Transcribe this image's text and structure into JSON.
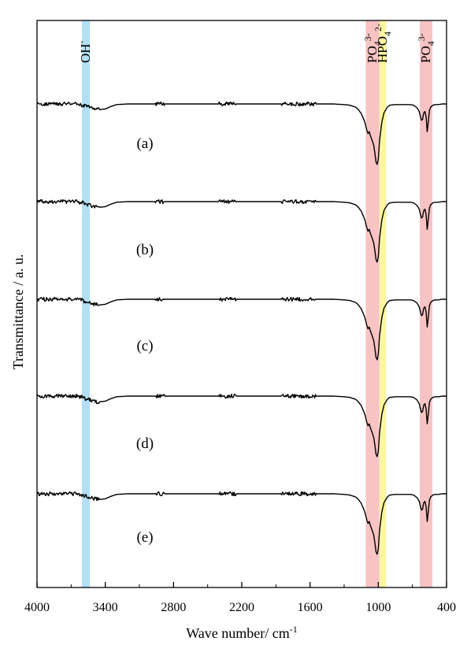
{
  "chart_data": {
    "type": "line",
    "xlabel": "Wave number/ cm",
    "xlabel_sup": "-1",
    "ylabel": "Transmittance / a. u.",
    "xlim": [
      4000,
      400
    ],
    "x_reversed": true,
    "xticks": [
      4000,
      3400,
      2800,
      2200,
      1600,
      1000,
      400
    ],
    "xtick_labels": [
      "4000",
      "3400",
      "2800",
      "2200",
      "1600",
      "1000",
      "400"
    ],
    "grid": false,
    "highlight_bands": [
      {
        "center": 3570,
        "width": 70,
        "color": "#b3dff5",
        "label": "OH",
        "label_sup": "-",
        "label_sub": ""
      },
      {
        "center": 1050,
        "width": 120,
        "color": "#f7c3c3",
        "label": "PO",
        "label_sub": "4",
        "label_sup": "3-"
      },
      {
        "center": 960,
        "width": 60,
        "color": "#fbf6a0",
        "label": "HPO",
        "label_sub": "4",
        "label_sup": "2-"
      },
      {
        "center": 580,
        "width": 110,
        "color": "#f7c3c3",
        "label": "PO",
        "label_sub": "4",
        "label_sup": "3-"
      }
    ],
    "series": [
      {
        "label": "(a)"
      },
      {
        "label": "(b)"
      },
      {
        "label": "(c)"
      },
      {
        "label": "(d)"
      },
      {
        "label": "(e)"
      }
    ],
    "spectrum_profile": {
      "x": [
        4000,
        3700,
        3650,
        3600,
        3550,
        3500,
        3450,
        3400,
        3350,
        3300,
        3200,
        3000,
        2900,
        2800,
        2500,
        2350,
        2200,
        2000,
        1800,
        1700,
        1600,
        1500,
        1400,
        1300,
        1250,
        1200,
        1180,
        1150,
        1120,
        1100,
        1090,
        1080,
        1070,
        1060,
        1050,
        1040,
        1030,
        1020,
        1010,
        1000,
        990,
        970,
        950,
        920,
        900,
        850,
        800,
        760,
        720,
        690,
        660,
        640,
        630,
        620,
        610,
        605,
        600,
        590,
        580,
        575,
        570,
        565,
        560,
        555,
        550,
        540,
        520,
        500,
        470,
        440,
        400
      ],
      "y": [
        0,
        0,
        0,
        0.02,
        0.05,
        0.08,
        0.09,
        0.08,
        0.04,
        0.01,
        0,
        0,
        0,
        0,
        0,
        0,
        0,
        0,
        0,
        0,
        0,
        0,
        0,
        0.01,
        0.02,
        0.05,
        0.08,
        0.15,
        0.28,
        0.42,
        0.47,
        0.44,
        0.5,
        0.55,
        0.6,
        0.66,
        0.78,
        0.92,
        0.96,
        0.88,
        0.6,
        0.3,
        0.14,
        0.05,
        0.02,
        0.01,
        0.01,
        0.01,
        0.01,
        0.02,
        0.06,
        0.12,
        0.2,
        0.26,
        0.24,
        0.18,
        0.14,
        0.12,
        0.2,
        0.32,
        0.44,
        0.36,
        0.28,
        0.18,
        0.1,
        0.05,
        0.02,
        0.01,
        0.01,
        0,
        0
      ]
    }
  }
}
